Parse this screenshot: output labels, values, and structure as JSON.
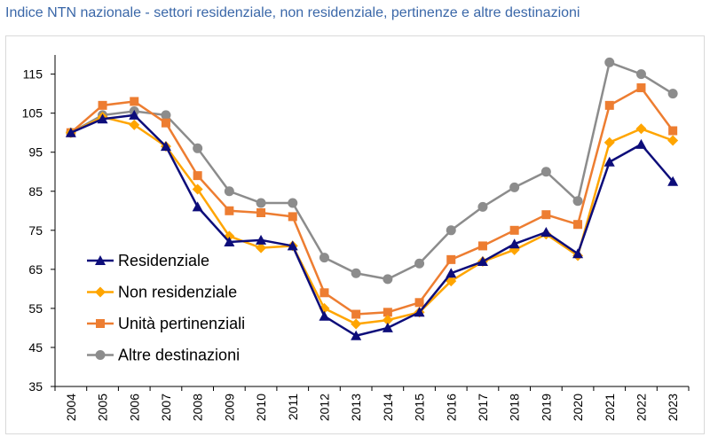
{
  "title": "Indice NTN nazionale - settori residenziale, non residenziale, pertinenze e altre destinazioni",
  "chart_data": {
    "type": "line",
    "title": "Indice NTN nazionale - settori residenziale, non residenziale, pertinenze e altre destinazioni",
    "x": [
      "2004",
      "2005",
      "2006",
      "2007",
      "2008",
      "2009",
      "2010",
      "2011",
      "2012",
      "2013",
      "2014",
      "2015",
      "2016",
      "2017",
      "2018",
      "2019",
      "2020",
      "2021",
      "2022",
      "2023"
    ],
    "ylim": [
      35,
      119
    ],
    "yticks": [
      35,
      45,
      55,
      65,
      75,
      85,
      95,
      105,
      115
    ],
    "grid": false,
    "legend_position": "bottom-left",
    "series": [
      {
        "name": "Residenziale",
        "color": "#0d0d7a",
        "marker": "triangle",
        "values": [
          100,
          103.5,
          104.5,
          96.5,
          81,
          72,
          72.5,
          71,
          53,
          48,
          50,
          54,
          64,
          67,
          71.5,
          74.5,
          69,
          92.5,
          97,
          87.5
        ]
      },
      {
        "name": "Non residenziale",
        "color": "#ffa500",
        "marker": "diamond",
        "values": [
          100,
          104,
          102,
          96.5,
          85.5,
          73.5,
          70.5,
          71,
          55,
          51,
          52,
          54,
          62,
          67,
          70,
          74,
          68.5,
          97.5,
          101,
          98
        ]
      },
      {
        "name": "Unità pertinenziali",
        "color": "#ed7d31",
        "marker": "square",
        "values": [
          100,
          107,
          108,
          102.5,
          89,
          80,
          79.5,
          78.5,
          59,
          53.5,
          54,
          56.5,
          67.5,
          71,
          75,
          79,
          76.5,
          107,
          111.5,
          100.5
        ]
      },
      {
        "name": "Altre destinazioni",
        "color": "#8c8c8c",
        "marker": "circle",
        "values": [
          100,
          104.5,
          105.5,
          104.5,
          96,
          85,
          82,
          82,
          68,
          64,
          62.5,
          66.5,
          75,
          81,
          86,
          90,
          82.5,
          118,
          115,
          110
        ]
      }
    ]
  }
}
